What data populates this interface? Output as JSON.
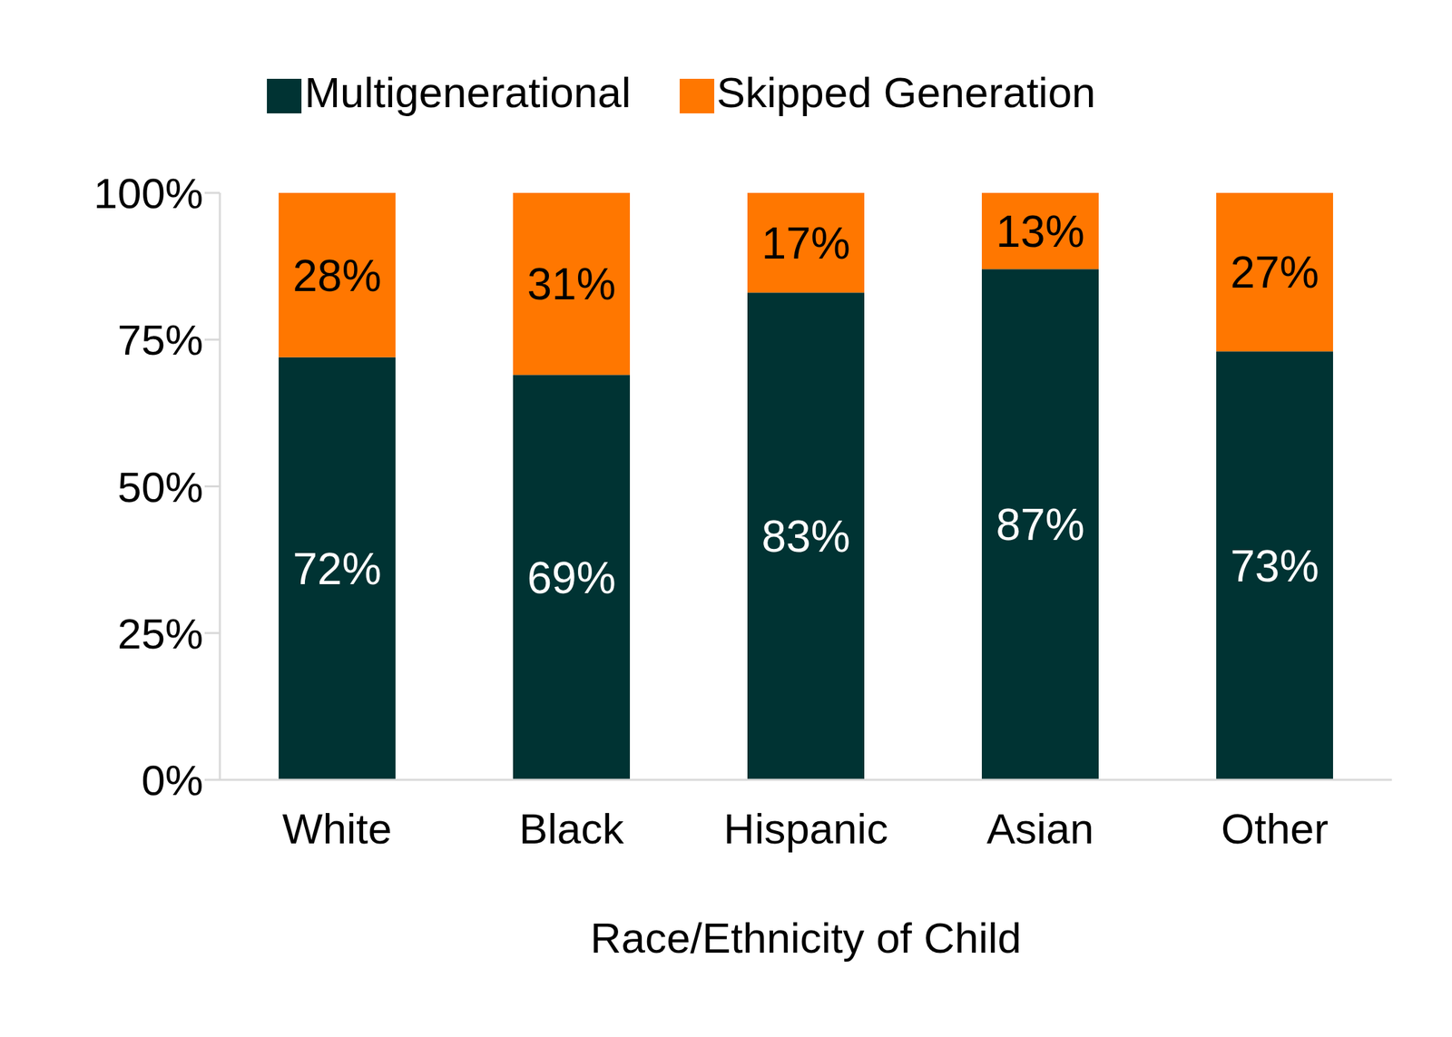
{
  "chart_data": {
    "type": "bar",
    "stacked": true,
    "x_label": "Race/Ethnicity of Child",
    "categories": [
      "White",
      "Black",
      "Hispanic",
      "Asian",
      "Other"
    ],
    "series": [
      {
        "name": "Multigenerational",
        "color": "#003333",
        "values": [
          72,
          69,
          83,
          87,
          73
        ],
        "value_labels": [
          "72%",
          "69%",
          "83%",
          "87%",
          "73%"
        ]
      },
      {
        "name": "Skipped Generation",
        "color": "#FF7700",
        "values": [
          28,
          31,
          17,
          13,
          27
        ],
        "value_labels": [
          "28%",
          "31%",
          "17%",
          "13%",
          "27%"
        ]
      }
    ],
    "ylim": [
      0,
      100
    ],
    "yticks": [
      {
        "value": 0,
        "label": "0%"
      },
      {
        "value": 25,
        "label": "25%"
      },
      {
        "value": 50,
        "label": "50%"
      },
      {
        "value": 75,
        "label": "75%"
      },
      {
        "value": 100,
        "label": "100%"
      }
    ],
    "data_labels": true,
    "legend": "top",
    "grid": false
  }
}
